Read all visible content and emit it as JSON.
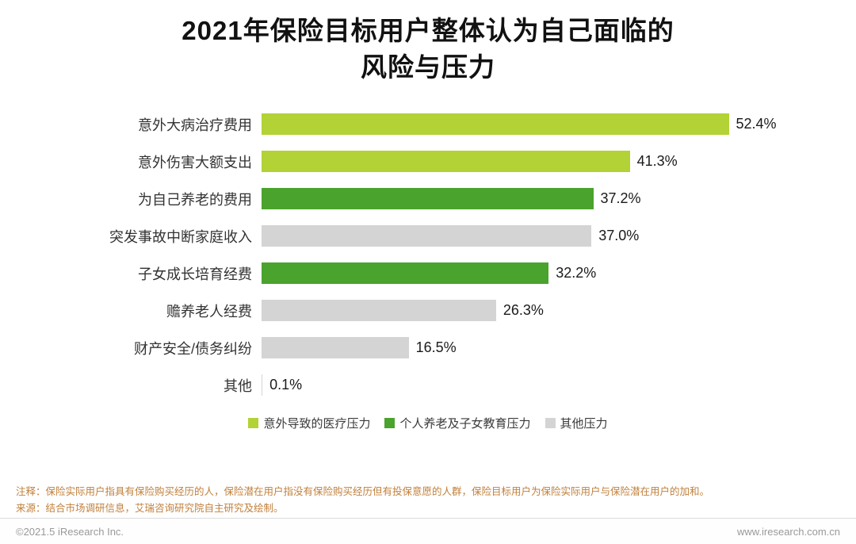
{
  "title": "2021年保险目标用户整体认为自己面临的风险与压力",
  "chart_data": {
    "type": "bar",
    "orientation": "horizontal",
    "title": "2021年保险目标用户整体认为自己面临的风险与压力",
    "categories": [
      "意外大病治疗费用",
      "意外伤害大额支出",
      "为自己养老的费用",
      "突发事故中断家庭收入",
      "子女成长培育经费",
      "赡养老人经费",
      "财产安全/债务纠纷",
      "其他"
    ],
    "values": [
      52.4,
      41.3,
      37.2,
      37.0,
      32.2,
      26.3,
      16.5,
      0.1
    ],
    "value_labels": [
      "52.4%",
      "41.3%",
      "37.2%",
      "37.0%",
      "32.2%",
      "26.3%",
      "16.5%",
      "0.1%"
    ],
    "groups": [
      "accident",
      "accident",
      "pension",
      "other",
      "pension",
      "other",
      "other",
      "other"
    ],
    "colors": {
      "accident": "#b2d236",
      "pension": "#4aa32c",
      "other": "#d4d4d4"
    },
    "xlim": [
      0,
      64
    ],
    "grid": false,
    "legend_position": "bottom",
    "legend": [
      {
        "label": "意外导致的医疗压力",
        "group": "accident"
      },
      {
        "label": "个人养老及子女教育压力",
        "group": "pension"
      },
      {
        "label": "其他压力",
        "group": "other"
      }
    ]
  },
  "notes": {
    "line1": "注释：保险实际用户指具有保险购买经历的人，保险潜在用户指没有保险购买经历但有投保意愿的人群，保险目标用户为保险实际用户与保险潜在用户的加和。",
    "line2": "来源：结合市场调研信息，艾瑞咨询研究院自主研究及绘制。"
  },
  "footer": {
    "copyright": "©2021.5 iResearch Inc.",
    "website": "www.iresearch.com.cn"
  }
}
